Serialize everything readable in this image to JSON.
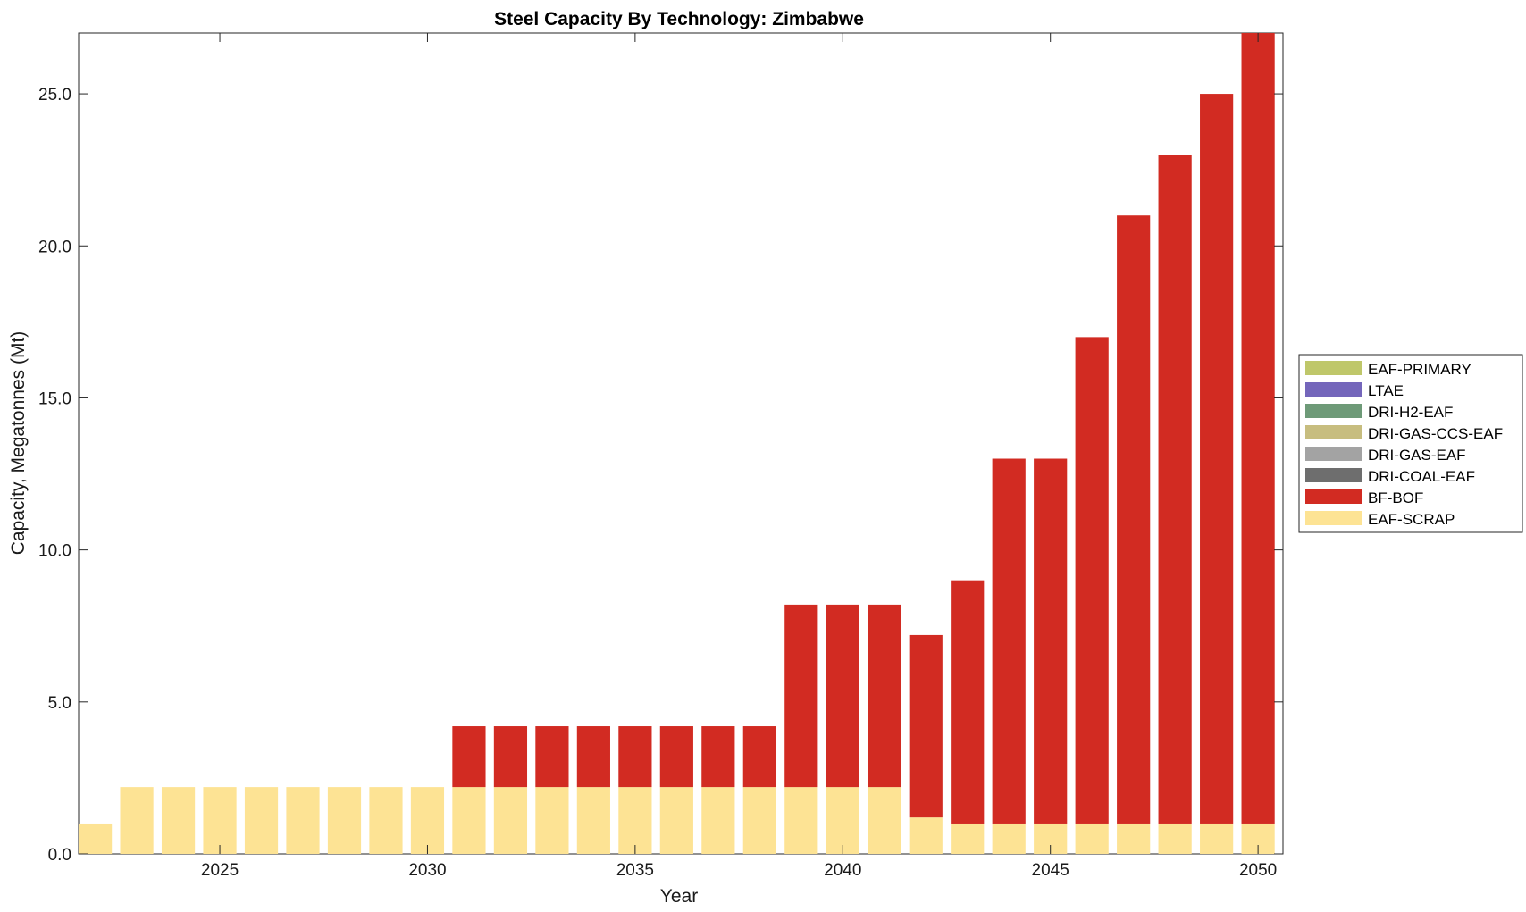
{
  "chart_data": {
    "type": "bar",
    "stacked": true,
    "title": "Steel Capacity By Technology: Zimbabwe",
    "xlabel": "Year",
    "ylabel": "Capacity, Megatonnes (Mt)",
    "xlim": [
      2021.6,
      2050.6
    ],
    "ylim": [
      0,
      27
    ],
    "xticks": [
      2025,
      2030,
      2035,
      2040,
      2045,
      2050
    ],
    "yticks": [
      0,
      5,
      10,
      15,
      20,
      25
    ],
    "ytick_labels": [
      "0.0",
      "5.0",
      "10.0",
      "15.0",
      "20.0",
      "25.0"
    ],
    "legend_position": "right",
    "categories": [
      2022,
      2023,
      2024,
      2025,
      2026,
      2027,
      2028,
      2029,
      2030,
      2031,
      2032,
      2033,
      2034,
      2035,
      2036,
      2037,
      2038,
      2039,
      2040,
      2041,
      2042,
      2043,
      2044,
      2045,
      2046,
      2047,
      2048,
      2049,
      2050
    ],
    "series": [
      {
        "name": "EAF-SCRAP",
        "color": "#fde394",
        "values": [
          1.0,
          2.2,
          2.2,
          2.2,
          2.2,
          2.2,
          2.2,
          2.2,
          2.2,
          2.2,
          2.2,
          2.2,
          2.2,
          2.2,
          2.2,
          2.2,
          2.2,
          2.2,
          2.2,
          2.2,
          1.2,
          1.0,
          1.0,
          1.0,
          1.0,
          1.0,
          1.0,
          1.0,
          1.0
        ]
      },
      {
        "name": "BF-BOF",
        "color": "#d22b22",
        "values": [
          0,
          0,
          0,
          0,
          0,
          0,
          0,
          0,
          0,
          2.0,
          2.0,
          2.0,
          2.0,
          2.0,
          2.0,
          2.0,
          2.0,
          6.0,
          6.0,
          6.0,
          6.0,
          8.0,
          12.0,
          12.0,
          16.0,
          20.0,
          22.0,
          24.0,
          26.0
        ]
      },
      {
        "name": "DRI-COAL-EAF",
        "color": "#6e6e6e",
        "values": [
          0,
          0,
          0,
          0,
          0,
          0,
          0,
          0,
          0,
          0,
          0,
          0,
          0,
          0,
          0,
          0,
          0,
          0,
          0,
          0,
          0,
          0,
          0,
          0,
          0,
          0,
          0,
          0,
          0
        ]
      },
      {
        "name": "DRI-GAS-EAF",
        "color": "#a3a3a3",
        "values": [
          0,
          0,
          0,
          0,
          0,
          0,
          0,
          0,
          0,
          0,
          0,
          0,
          0,
          0,
          0,
          0,
          0,
          0,
          0,
          0,
          0,
          0,
          0,
          0,
          0,
          0,
          0,
          0,
          0
        ]
      },
      {
        "name": "DRI-GAS-CCS-EAF",
        "color": "#c7bd7f",
        "values": [
          0,
          0,
          0,
          0,
          0,
          0,
          0,
          0,
          0,
          0,
          0,
          0,
          0,
          0,
          0,
          0,
          0,
          0,
          0,
          0,
          0,
          0,
          0,
          0,
          0,
          0,
          0,
          0,
          0
        ]
      },
      {
        "name": "DRI-H2-EAF",
        "color": "#6e9a78",
        "values": [
          0,
          0,
          0,
          0,
          0,
          0,
          0,
          0,
          0,
          0,
          0,
          0,
          0,
          0,
          0,
          0,
          0,
          0,
          0,
          0,
          0,
          0,
          0,
          0,
          0,
          0,
          0,
          0,
          0
        ]
      },
      {
        "name": "LTAE",
        "color": "#7466bb",
        "values": [
          0,
          0,
          0,
          0,
          0,
          0,
          0,
          0,
          0,
          0,
          0,
          0,
          0,
          0,
          0,
          0,
          0,
          0,
          0,
          0,
          0,
          0,
          0,
          0,
          0,
          0,
          0,
          0,
          0
        ]
      },
      {
        "name": "EAF-PRIMARY",
        "color": "#bfc76a",
        "values": [
          0,
          0,
          0,
          0,
          0,
          0,
          0,
          0,
          0,
          0,
          0,
          0,
          0,
          0,
          0,
          0,
          0,
          0,
          0,
          0,
          0,
          0,
          0,
          0,
          0,
          0,
          0,
          0,
          0
        ]
      }
    ],
    "legend_order": [
      "EAF-PRIMARY",
      "LTAE",
      "DRI-H2-EAF",
      "DRI-GAS-CCS-EAF",
      "DRI-GAS-EAF",
      "DRI-COAL-EAF",
      "BF-BOF",
      "EAF-SCRAP"
    ]
  }
}
